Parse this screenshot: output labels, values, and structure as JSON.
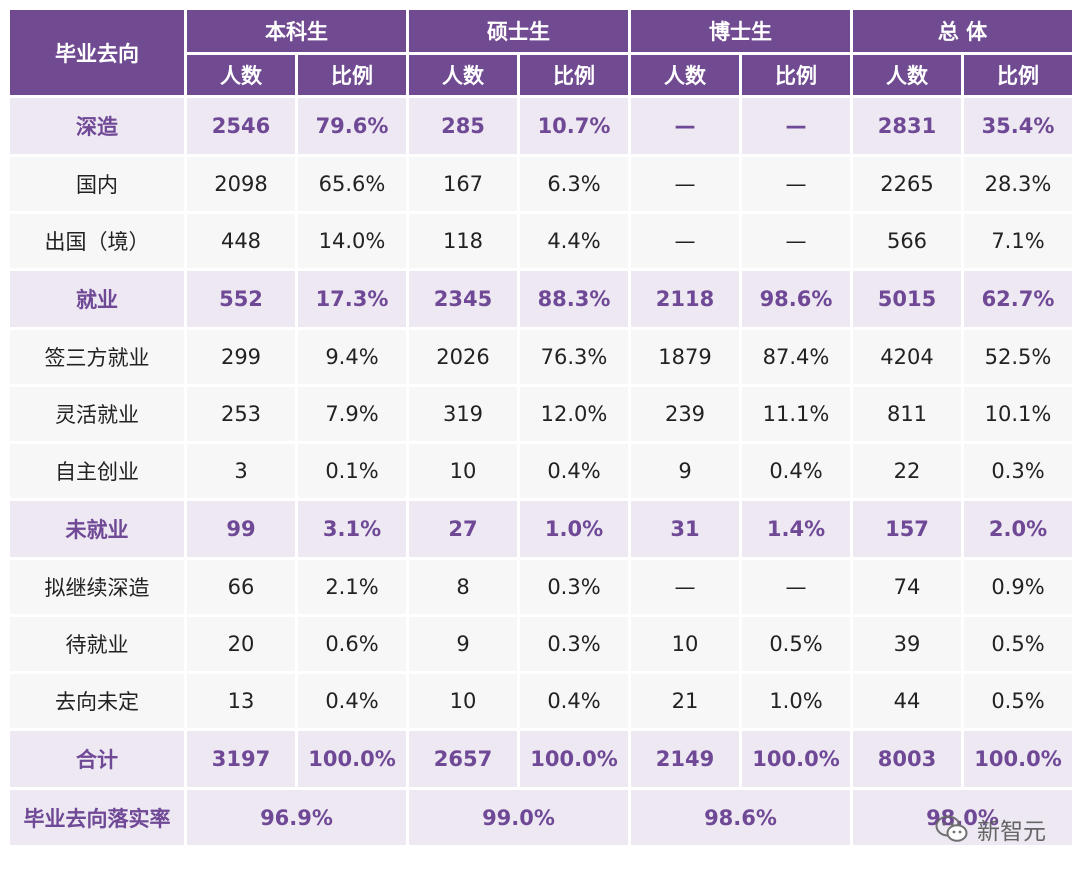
{
  "header": {
    "first_col": "毕业去向",
    "groups": [
      "本科生",
      "硕士生",
      "博士生",
      "总 体"
    ],
    "sub_count": "人数",
    "sub_ratio": "比例"
  },
  "rows": [
    {
      "type": "group",
      "label": "深造",
      "vals": [
        "2546",
        "79.6%",
        "285",
        "10.7%",
        "—",
        "—",
        "2831",
        "35.4%"
      ]
    },
    {
      "type": "sub",
      "label": "国内",
      "vals": [
        "2098",
        "65.6%",
        "167",
        "6.3%",
        "—",
        "—",
        "2265",
        "28.3%"
      ]
    },
    {
      "type": "sub",
      "label": "出国（境）",
      "vals": [
        "448",
        "14.0%",
        "118",
        "4.4%",
        "—",
        "—",
        "566",
        "7.1%"
      ]
    },
    {
      "type": "group",
      "label": "就业",
      "vals": [
        "552",
        "17.3%",
        "2345",
        "88.3%",
        "2118",
        "98.6%",
        "5015",
        "62.7%"
      ]
    },
    {
      "type": "sub",
      "label": "签三方就业",
      "vals": [
        "299",
        "9.4%",
        "2026",
        "76.3%",
        "1879",
        "87.4%",
        "4204",
        "52.5%"
      ]
    },
    {
      "type": "sub",
      "label": "灵活就业",
      "vals": [
        "253",
        "7.9%",
        "319",
        "12.0%",
        "239",
        "11.1%",
        "811",
        "10.1%"
      ]
    },
    {
      "type": "sub",
      "label": "自主创业",
      "vals": [
        "3",
        "0.1%",
        "10",
        "0.4%",
        "9",
        "0.4%",
        "22",
        "0.3%"
      ]
    },
    {
      "type": "group",
      "label": "未就业",
      "vals": [
        "99",
        "3.1%",
        "27",
        "1.0%",
        "31",
        "1.4%",
        "157",
        "2.0%"
      ]
    },
    {
      "type": "sub",
      "label": "拟继续深造",
      "vals": [
        "66",
        "2.1%",
        "8",
        "0.3%",
        "—",
        "—",
        "74",
        "0.9%"
      ]
    },
    {
      "type": "sub",
      "label": "待就业",
      "vals": [
        "20",
        "0.6%",
        "9",
        "0.3%",
        "10",
        "0.5%",
        "39",
        "0.5%"
      ]
    },
    {
      "type": "sub",
      "label": "去向未定",
      "vals": [
        "13",
        "0.4%",
        "10",
        "0.4%",
        "21",
        "1.0%",
        "44",
        "0.5%"
      ]
    },
    {
      "type": "total",
      "label": "合计",
      "vals": [
        "3197",
        "100.0%",
        "2657",
        "100.0%",
        "2149",
        "100.0%",
        "8003",
        "100.0%"
      ]
    }
  ],
  "rate": {
    "label": "毕业去向落实率",
    "vals": [
      "96.9%",
      "99.0%",
      "98.6%",
      "98.0%"
    ]
  },
  "watermark": {
    "icon": "wechat-icon",
    "text": "新智元"
  },
  "colors": {
    "header_bg": "#714b92",
    "accent_text": "#6f4896",
    "group_bg": "#ede8f2",
    "sub_bg": "#f7f7f7"
  }
}
